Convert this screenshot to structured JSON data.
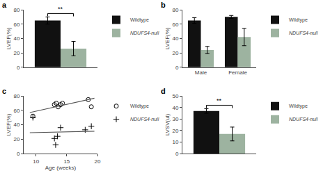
{
  "chart_data": [
    {
      "type": "bar",
      "title": "a",
      "ylabel": "LVEF(%)",
      "categories": [
        null
      ],
      "series": [
        {
          "name": "Wildtype",
          "color": "#111111",
          "values": [
            65
          ],
          "errors": [
            5
          ]
        },
        {
          "name": "NDUFS4-null",
          "color": "#9db3a0",
          "values": [
            26
          ],
          "errors": [
            10
          ]
        }
      ],
      "ylim": [
        0,
        80
      ],
      "yticks": [
        0,
        20,
        40,
        60,
        80
      ],
      "annotations": [
        "**"
      ],
      "grid": false,
      "legend": "right",
      "tick_labels": "y"
    },
    {
      "type": "bar",
      "title": "b",
      "ylabel": "LVEF(%)",
      "categories": [
        "Male",
        "Female"
      ],
      "series": [
        {
          "name": "Wildtype",
          "color": "#111111",
          "values": [
            65,
            70
          ],
          "errors": [
            4,
            2
          ]
        },
        {
          "name": "NDUFS4-null",
          "color": "#9db3a0",
          "values": [
            24,
            42
          ],
          "errors": [
            5,
            12
          ]
        }
      ],
      "ylim": [
        0,
        80
      ],
      "yticks": [
        0,
        20,
        40,
        60,
        80
      ],
      "grid": false,
      "legend": "right"
    },
    {
      "type": "scatter",
      "title": "c",
      "xlabel": "Age (weeks)",
      "ylabel": "LVEF(%)",
      "series": [
        {
          "name": "Wildtype",
          "type": "scatter",
          "marker": "circle-open",
          "color": "#000000",
          "x": [
            9.5,
            13.0,
            13.3,
            13.6,
            14.0,
            14.3,
            18.5,
            19.0
          ],
          "values": [
            52,
            68,
            70,
            65,
            68,
            70,
            75,
            65
          ]
        },
        {
          "name": "NDUFS4-null",
          "type": "scatter",
          "marker": "plus",
          "color": "#000000",
          "x": [
            9.5,
            13.0,
            13.2,
            13.5,
            14.0,
            18.0,
            19.0
          ],
          "values": [
            50,
            21,
            12,
            24,
            36,
            33,
            38
          ]
        },
        {
          "type": "line",
          "color": "#555555",
          "x": [
            9.0,
            19.5
          ],
          "values": [
            57,
            77
          ]
        },
        {
          "type": "line",
          "color": "#555555",
          "x": [
            9.0,
            19.5
          ],
          "values": [
            29,
            31
          ]
        }
      ],
      "xlim": [
        8,
        20
      ],
      "xticks": [
        10,
        15,
        20
      ],
      "ylim": [
        0,
        80
      ],
      "yticks": [
        0,
        20,
        40,
        60,
        80
      ],
      "grid": false,
      "legend": "right"
    },
    {
      "type": "bar",
      "title": "d",
      "ylabel": "LVSV(ul)",
      "categories": [
        null
      ],
      "series": [
        {
          "name": "Wildtype",
          "color": "#111111",
          "values": [
            37
          ],
          "errors": [
            2
          ]
        },
        {
          "name": "NDUFS4-null",
          "color": "#9db3a0",
          "values": [
            17
          ],
          "errors": [
            6
          ]
        }
      ],
      "ylim": [
        0,
        50
      ],
      "yticks": [
        0,
        10,
        20,
        30,
        40,
        50
      ],
      "annotations": [
        "**"
      ],
      "grid": false,
      "legend": "right",
      "tick_labels": "y"
    }
  ]
}
